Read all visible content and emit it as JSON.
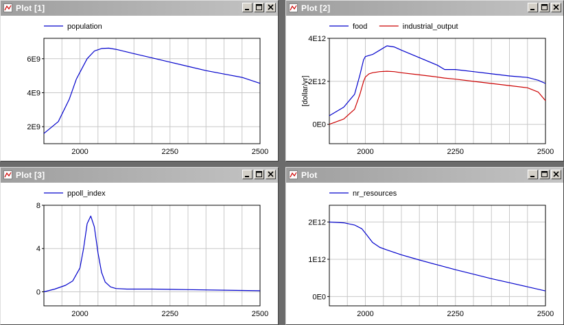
{
  "windows": [
    {
      "title": "Plot [1]",
      "chart": {
        "type": "line",
        "x": [
          1900,
          1940,
          1970,
          1990,
          2000,
          2020,
          2040,
          2060,
          2080,
          2100,
          2150,
          2200,
          2250,
          2300,
          2350,
          2400,
          2450,
          2500
        ],
        "series": [
          {
            "name": "population",
            "color": "#0000cc",
            "values": [
              1600000000.0,
              2300000000.0,
              3600000000.0,
              4800000000.0,
              5200000000.0,
              6000000000.0,
              6450000000.0,
              6600000000.0,
              6620000000.0,
              6550000000.0,
              6300000000.0,
              6050000000.0,
              5800000000.0,
              5550000000.0,
              5300000000.0,
              5100000000.0,
              4900000000.0,
              4550000000.0
            ]
          }
        ],
        "ylim": [
          1000000000.0,
          7200000000.0
        ],
        "yticks": [
          2000000000.0,
          4000000000.0,
          6000000000.0
        ],
        "ytick_labels": [
          "2E9",
          "4E9",
          "6E9"
        ],
        "xlim": [
          1900,
          2500
        ],
        "xticks": [
          2000,
          2250,
          2500
        ],
        "xtick_labels": [
          "2000",
          "2250",
          "2500"
        ],
        "ylabel": ""
      }
    },
    {
      "title": "Plot [2]",
      "chart": {
        "type": "line",
        "x": [
          1900,
          1940,
          1970,
          1985,
          1995,
          2000,
          2010,
          2020,
          2040,
          2060,
          2080,
          2100,
          2150,
          2200,
          2220,
          2250,
          2300,
          2350,
          2400,
          2450,
          2480,
          2500
        ],
        "series": [
          {
            "name": "food",
            "color": "#0000cc",
            "values": [
              400000000000.0,
              800000000000.0,
              1400000000000.0,
              2300000000000.0,
              3000000000000.0,
              3150000000000.0,
              3200000000000.0,
              3250000000000.0,
              3450000000000.0,
              3650000000000.0,
              3600000000000.0,
              3450000000000.0,
              3100000000000.0,
              2750000000000.0,
              2550000000000.0,
              2550000000000.0,
              2450000000000.0,
              2350000000000.0,
              2250000000000.0,
              2180000000000.0,
              2050000000000.0,
              1900000000000.0
            ]
          },
          {
            "name": "industrial_output",
            "color": "#cc0000",
            "values": [
              0.0,
              250000000000.0,
              700000000000.0,
              1400000000000.0,
              2000000000000.0,
              2200000000000.0,
              2350000000000.0,
              2400000000000.0,
              2450000000000.0,
              2470000000000.0,
              2450000000000.0,
              2400000000000.0,
              2300000000000.0,
              2200000000000.0,
              2150000000000.0,
              2100000000000.0,
              2000000000000.0,
              1900000000000.0,
              1800000000000.0,
              1700000000000.0,
              1500000000000.0,
              1100000000000.0
            ]
          }
        ],
        "ylim": [
          -900000000000.0,
          4000000000000.0
        ],
        "yticks": [
          0,
          2000000000000.0,
          4000000000000.0
        ],
        "ytick_labels": [
          "0E0",
          "2E12",
          "4E12"
        ],
        "xlim": [
          1900,
          2500
        ],
        "xticks": [
          2000,
          2250,
          2500
        ],
        "xtick_labels": [
          "2000",
          "2250",
          "2500"
        ],
        "ylabel": "[dollar/yr]"
      }
    },
    {
      "title": "Plot [3]",
      "chart": {
        "type": "line",
        "x": [
          1900,
          1930,
          1960,
          1980,
          2000,
          2010,
          2020,
          2030,
          2040,
          2050,
          2060,
          2070,
          2085,
          2100,
          2130,
          2200,
          2300,
          2400,
          2500
        ],
        "series": [
          {
            "name": "ppoll_index",
            "color": "#0000cc",
            "values": [
              0.0,
              0.25,
              0.6,
              1.0,
              2.2,
              4.0,
              6.3,
              7.0,
              6.0,
              3.6,
              1.8,
              0.9,
              0.45,
              0.3,
              0.25,
              0.25,
              0.2,
              0.15,
              0.1
            ]
          }
        ],
        "ylim": [
          -1.3,
          8.0
        ],
        "yticks": [
          0,
          4,
          8
        ],
        "ytick_labels": [
          "0",
          "4",
          "8"
        ],
        "xlim": [
          1900,
          2500
        ],
        "xticks": [
          2000,
          2250,
          2500
        ],
        "xtick_labels": [
          "2000",
          "2250",
          "2500"
        ],
        "ylabel": ""
      }
    },
    {
      "title": "Plot",
      "chart": {
        "type": "line",
        "x": [
          1900,
          1940,
          1970,
          1990,
          2000,
          2020,
          2040,
          2060,
          2100,
          2150,
          2200,
          2250,
          2300,
          2350,
          2400,
          2450,
          2500
        ],
        "series": [
          {
            "name": "nr_resources",
            "color": "#0000cc",
            "values": [
              2000000000000.0,
              1980000000000.0,
              1920000000000.0,
              1820000000000.0,
              1700000000000.0,
              1450000000000.0,
              1320000000000.0,
              1250000000000.0,
              1120000000000.0,
              980000000000.0,
              850000000000.0,
              720000000000.0,
              600000000000.0,
              480000000000.0,
              370000000000.0,
              260000000000.0,
              150000000000.0
            ]
          }
        ],
        "ylim": [
          -250000000000.0,
          2450000000000.0
        ],
        "yticks": [
          0,
          1000000000000.0,
          2000000000000.0
        ],
        "ytick_labels": [
          "0E0",
          "1E12",
          "2E12"
        ],
        "xlim": [
          1900,
          2500
        ],
        "xticks": [
          2000,
          2250,
          2500
        ],
        "xtick_labels": [
          "2000",
          "2250",
          "2500"
        ],
        "ylabel": ""
      }
    }
  ]
}
